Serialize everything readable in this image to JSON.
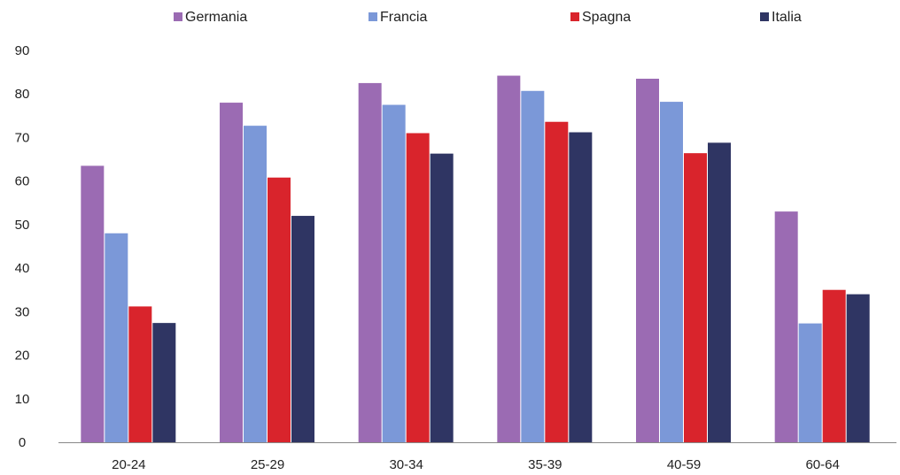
{
  "chart_data": {
    "type": "bar",
    "categories": [
      "20-24",
      "25-29",
      "30-34",
      "35-39",
      "40-59",
      "60-64"
    ],
    "series": [
      {
        "name": "Germania",
        "color": "#9b6bb3",
        "values": [
          63.5,
          78,
          82.5,
          84.2,
          83.5,
          53
        ]
      },
      {
        "name": "Francia",
        "color": "#7b98d8",
        "values": [
          48,
          72.7,
          77.5,
          80.7,
          78.2,
          27.3
        ]
      },
      {
        "name": "Spagna",
        "color": "#d9242c",
        "values": [
          31.2,
          60.8,
          71,
          73.6,
          66.4,
          35
        ]
      },
      {
        "name": "Italia",
        "color": "#2f3563",
        "values": [
          27.4,
          52,
          66.3,
          71.2,
          68.8,
          34
        ]
      }
    ],
    "ylim": [
      0,
      90
    ],
    "yticks": [
      0,
      10,
      20,
      30,
      40,
      50,
      60,
      70,
      80,
      90
    ],
    "grid": false,
    "legend": "top"
  }
}
